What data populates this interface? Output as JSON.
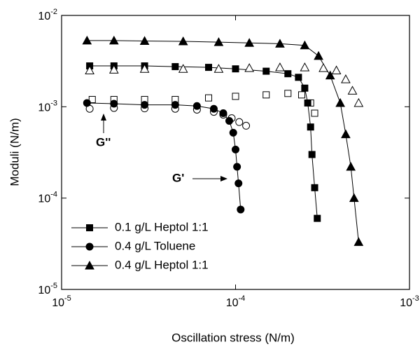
{
  "chart_data": {
    "type": "scatter",
    "x_label": "Oscillation stress (N/m)",
    "y_label": "Moduli (N/m)",
    "log_x": true,
    "log_y": true,
    "xlim": [
      1e-05,
      0.001
    ],
    "ylim": [
      1e-05,
      0.01
    ],
    "xticks": [
      {
        "value": 1e-05,
        "label": "10-5"
      },
      {
        "value": 0.0001,
        "label": "10-4"
      },
      {
        "value": 0.001,
        "label": "10-3"
      }
    ],
    "yticks": [
      {
        "value": 1e-05,
        "label": "10-5"
      },
      {
        "value": 0.0001,
        "label": "10-4"
      },
      {
        "value": 0.001,
        "label": "10-3"
      },
      {
        "value": 0.01,
        "label": "10-2"
      }
    ],
    "legend_position": "lower left",
    "annotations": [
      {
        "text": "G''"
      },
      {
        "text": "G'"
      }
    ],
    "series": [
      {
        "name": "0.1 g/L Heptol 1:1",
        "marker": "square",
        "color": "#000000",
        "x": [
          1.45e-05,
          2e-05,
          3e-05,
          4.5e-05,
          7e-05,
          0.0001,
          0.00015,
          0.0002,
          0.00023,
          0.00025,
          0.00026,
          0.00027,
          0.000275,
          0.000285,
          0.000295
        ],
        "values": [
          0.0028,
          0.0028,
          0.0028,
          0.00275,
          0.0027,
          0.0026,
          0.00245,
          0.0023,
          0.0021,
          0.0016,
          0.0011,
          0.0006,
          0.0003,
          0.00013,
          6e-05
        ],
        "loss_x": [
          1.5e-05,
          2e-05,
          3e-05,
          4.5e-05,
          7e-05,
          0.0001,
          0.00015,
          0.0002,
          0.00024,
          0.00027,
          0.000285
        ],
        "loss_values": [
          0.0012,
          0.0012,
          0.0012,
          0.0012,
          0.00125,
          0.0013,
          0.00135,
          0.0014,
          0.00135,
          0.0011,
          0.00085
        ]
      },
      {
        "name": "0.4 g/L Toluene",
        "marker": "circle",
        "color": "#000000",
        "x": [
          1.4e-05,
          2e-05,
          3e-05,
          4.5e-05,
          6e-05,
          7.5e-05,
          8.5e-05,
          9.2e-05,
          9.7e-05,
          0.0001,
          0.000102,
          0.000104,
          0.000107
        ],
        "values": [
          0.0011,
          0.00108,
          0.00105,
          0.00105,
          0.00102,
          0.00095,
          0.00085,
          0.0007,
          0.00052,
          0.00034,
          0.00022,
          0.000145,
          7.5e-05
        ],
        "loss_x": [
          1.45e-05,
          2e-05,
          3e-05,
          4.5e-05,
          6e-05,
          7.5e-05,
          8.5e-05,
          9.5e-05,
          0.000105,
          0.000115
        ],
        "loss_values": [
          0.00095,
          0.00097,
          0.00096,
          0.00095,
          0.00093,
          0.00088,
          0.00082,
          0.00075,
          0.00068,
          0.00062
        ]
      },
      {
        "name": "0.4 g/L Heptol 1:1",
        "marker": "triangle",
        "color": "#000000",
        "x": [
          1.4e-05,
          2e-05,
          3e-05,
          5e-05,
          8e-05,
          0.00012,
          0.00018,
          0.00025,
          0.0003,
          0.00035,
          0.0004,
          0.00043,
          0.00046,
          0.00048,
          0.00051
        ],
        "values": [
          0.0053,
          0.0053,
          0.00525,
          0.0052,
          0.0051,
          0.005,
          0.0049,
          0.0047,
          0.0036,
          0.0022,
          0.0011,
          0.0005,
          0.00022,
          0.0001,
          3.3e-05
        ],
        "loss_x": [
          1.45e-05,
          2e-05,
          3e-05,
          5e-05,
          8e-05,
          0.00012,
          0.00018,
          0.00025,
          0.00032,
          0.00038,
          0.00043,
          0.00047,
          0.00051
        ],
        "loss_values": [
          0.0025,
          0.00255,
          0.0026,
          0.0026,
          0.0026,
          0.00265,
          0.0027,
          0.0027,
          0.00265,
          0.0025,
          0.002,
          0.0015,
          0.0011
        ]
      }
    ]
  }
}
